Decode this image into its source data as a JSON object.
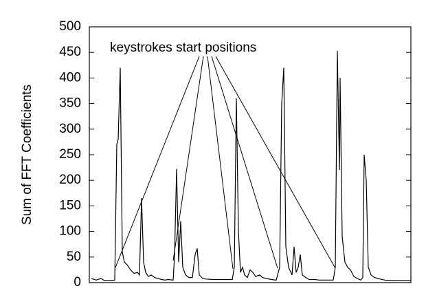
{
  "chart_data": {
    "type": "line",
    "y_label": "Sum of FFT Coefficients",
    "annotation": "keystrokes start positions",
    "color": "#000000",
    "x": [
      3,
      10,
      17,
      22,
      30,
      37,
      40,
      42,
      45,
      48,
      51,
      55,
      60,
      65,
      70,
      73,
      76,
      79,
      82,
      86,
      90,
      95,
      100,
      105,
      110,
      115,
      122,
      124,
      127,
      130,
      133,
      136,
      140,
      145,
      150,
      154,
      157,
      160,
      165,
      170,
      180,
      190,
      200,
      208,
      211,
      214,
      217,
      220,
      223,
      226,
      230,
      234,
      238,
      242,
      248,
      252,
      258,
      265,
      272,
      277,
      280,
      283,
      286,
      290,
      295,
      298,
      301,
      304,
      307,
      310,
      315,
      320,
      328,
      335,
      345,
      355,
      358,
      361,
      364,
      365,
      368,
      372,
      376,
      380,
      385,
      390,
      395,
      398,
      400,
      403,
      406,
      410,
      415,
      420,
      430,
      440,
      450,
      460,
      468
    ],
    "values": [
      8,
      5,
      8,
      4,
      4,
      5,
      270,
      280,
      420,
      60,
      40,
      35,
      25,
      18,
      20,
      15,
      165,
      40,
      20,
      12,
      15,
      10,
      8,
      6,
      5,
      6,
      5,
      50,
      222,
      40,
      120,
      30,
      15,
      10,
      10,
      55,
      67,
      15,
      8,
      7,
      6,
      6,
      6,
      6,
      30,
      360,
      100,
      20,
      30,
      15,
      10,
      25,
      20,
      12,
      15,
      10,
      8,
      6,
      5,
      30,
      350,
      420,
      70,
      30,
      15,
      70,
      20,
      30,
      55,
      15,
      10,
      6,
      6,
      5,
      5,
      5,
      30,
      453,
      220,
      400,
      90,
      40,
      30,
      25,
      12,
      8,
      5,
      10,
      250,
      200,
      30,
      15,
      10,
      8,
      5,
      4,
      4,
      4,
      4
    ],
    "xlim": [
      0,
      468
    ],
    "ylim": [
      0,
      500
    ],
    "yticks": [
      0,
      50,
      100,
      150,
      200,
      250,
      300,
      350,
      400,
      450,
      500
    ]
  }
}
